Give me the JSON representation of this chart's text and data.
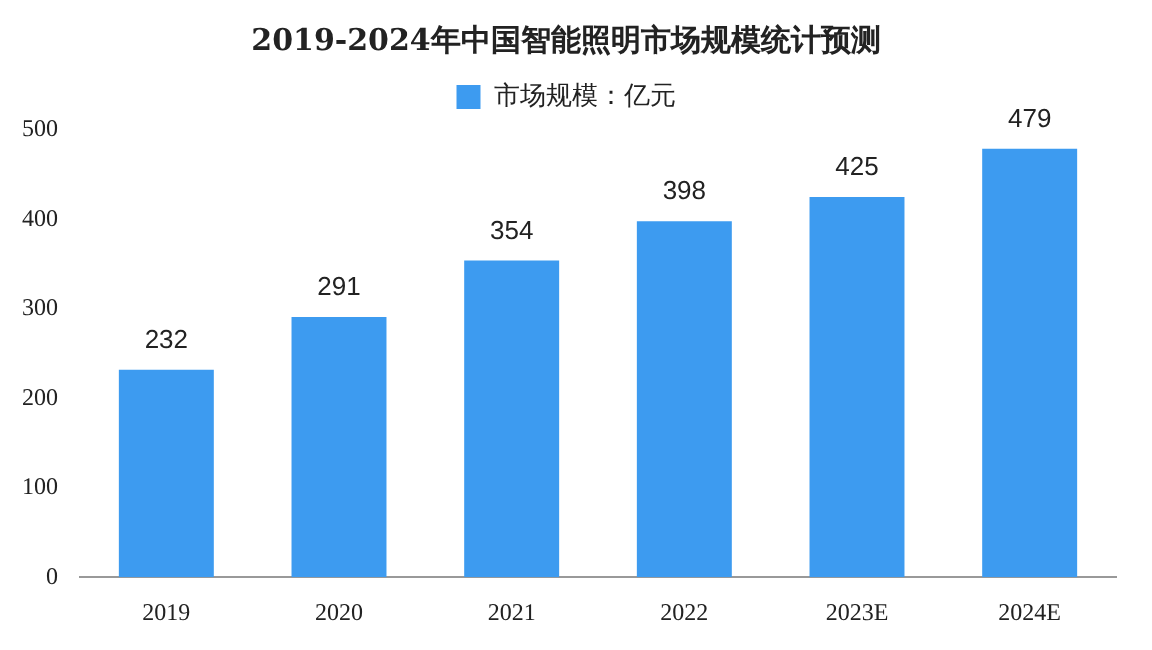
{
  "chart_data": {
    "type": "bar",
    "title": "2019-2024年中国智能照明市场规模统计预测",
    "categories": [
      "2019",
      "2020",
      "2021",
      "2022",
      "2023E",
      "2024E"
    ],
    "series": [
      {
        "name": "市场规模：亿元",
        "color": "#3d9bf0",
        "values": [
          232,
          291,
          354,
          398,
          425,
          479
        ]
      }
    ],
    "ylim": [
      0,
      500
    ],
    "yticks": [
      0,
      100,
      200,
      300,
      400,
      500
    ],
    "grid": false,
    "legend": "top",
    "data_labels": true
  }
}
